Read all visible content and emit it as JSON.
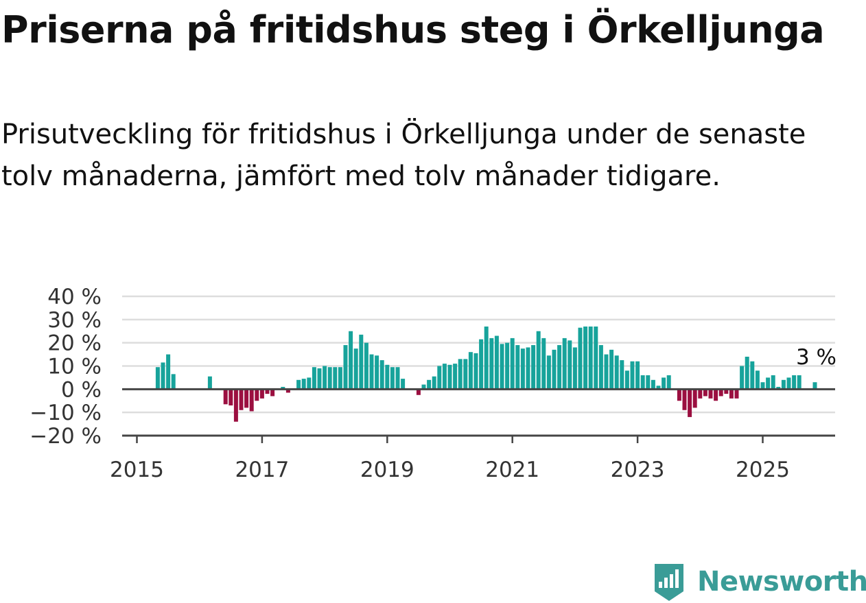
{
  "title": "Priserna på fritidshus steg i Örkelljunga",
  "subtitle": "Prisutveckling för fritidshus i Örkelljunga under de senaste tolv månaderna, jämfört med tolv månader tidigare.",
  "brand": {
    "name": "Newsworthy",
    "icon": "bar-chart-badge-icon",
    "color": "#3a9c97"
  },
  "chart_data": {
    "type": "bar",
    "title": "",
    "xlabel": "",
    "ylabel": "",
    "ylim": [
      -20,
      40
    ],
    "y_ticks": [
      40,
      30,
      20,
      10,
      0,
      -10,
      -20
    ],
    "y_tick_labels": [
      "40 %",
      "30 %",
      "20 %",
      "10 %",
      "0 %",
      "−10 %",
      "−20 %"
    ],
    "x_ticks": [
      "2015",
      "2017",
      "2019",
      "2021",
      "2023",
      "2025"
    ],
    "grid": true,
    "colors": {
      "positive": "#17a39b",
      "negative": "#9b0f40",
      "grid": "#dddddd",
      "axis": "#444444"
    },
    "last_value_label": "3 %",
    "start_month": "2015-01",
    "values": [
      null,
      null,
      null,
      null,
      9.5,
      11.5,
      15,
      6.5,
      null,
      null,
      null,
      null,
      null,
      null,
      5.5,
      null,
      null,
      -6.5,
      -7,
      -14,
      -9,
      -8,
      -9.5,
      -5,
      -4,
      -2,
      -3,
      null,
      1,
      -1.5,
      null,
      4,
      4.5,
      5,
      9.5,
      9,
      10,
      9.5,
      9.5,
      9.5,
      19,
      25,
      17.5,
      23.5,
      20,
      15,
      14.5,
      12.5,
      10.5,
      9.5,
      9.5,
      4.5,
      null,
      null,
      -2.5,
      2,
      4,
      5.5,
      10,
      11,
      10.5,
      11,
      13,
      13,
      16,
      15.5,
      21.5,
      27,
      22,
      23,
      19.5,
      20,
      22,
      19,
      17.5,
      18,
      19,
      25,
      22,
      14.5,
      17,
      19,
      22,
      21,
      18,
      26.5,
      27,
      27,
      27,
      19,
      15,
      17,
      14.5,
      12.5,
      8,
      12,
      12,
      6,
      6,
      4,
      1.5,
      5,
      6,
      null,
      -5,
      -9,
      -12,
      -8,
      -4,
      -3,
      -4,
      -5,
      -3,
      -2,
      -4,
      -4,
      10,
      14,
      12,
      8,
      3,
      5,
      6,
      1,
      4,
      5,
      6,
      6,
      null,
      null,
      3,
      null
    ]
  }
}
